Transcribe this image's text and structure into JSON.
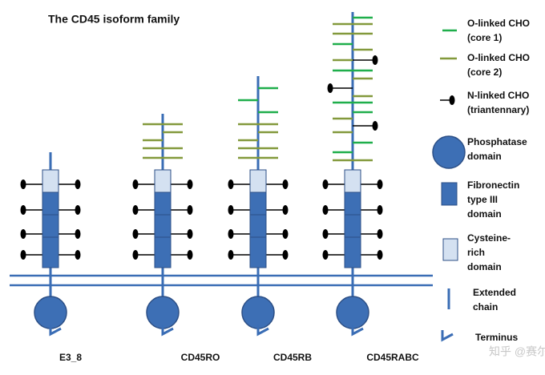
{
  "title": "The CD45 isoform family",
  "isoforms": [
    {
      "label": "E3_8"
    },
    {
      "label": "CD45RO"
    },
    {
      "label": "CD45RB"
    },
    {
      "label": "CD45RABC"
    }
  ],
  "legend": [
    {
      "lines": [
        "O-linked CHO",
        "(core 1)"
      ]
    },
    {
      "lines": [
        "O-linked CHO",
        "(core 2)"
      ]
    },
    {
      "lines": [
        "N-linked CHO",
        "(triantennary)"
      ]
    },
    {
      "lines": [
        "Phosphatase",
        "domain"
      ]
    },
    {
      "lines": [
        "Fibronectin",
        "type III",
        "domain"
      ]
    },
    {
      "lines": [
        "Cysteine-",
        "rich",
        "domain"
      ]
    },
    {
      "lines": [
        "Extended",
        "chain"
      ]
    },
    {
      "lines": [
        "Terminus"
      ]
    }
  ],
  "watermark": "知乎 @赛尔普生物"
}
